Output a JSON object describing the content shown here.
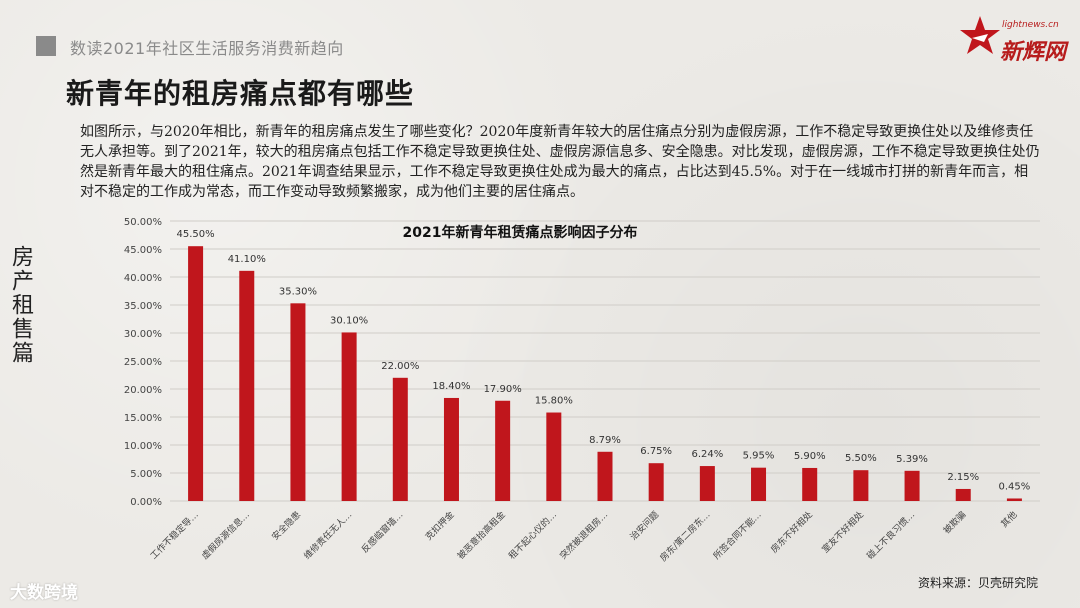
{
  "header": {
    "subtitle": "数读2021年社区生活服务消费新趋向",
    "title": "新青年的租房痛点都有哪些"
  },
  "logo": {
    "url_text": "lightnews.cn",
    "name": "新辉网"
  },
  "description": "如图所示，与2020年相比，新青年的租房痛点发生了哪些变化？2020年度新青年较大的居住痛点分别为虚假房源，工作不稳定导致更换住处以及维修责任无人承担等。到了2021年，较大的租房痛点包括工作不稳定导致更换住处、虚假房源信息多、安全隐患。对比发现，虚假房源，工作不稳定导致更换住处仍然是新青年最大的租住痛点。2021年调查结果显示，工作不稳定导致更换住处成为最大的痛点，占比达到45.5%。对于在一线城市打拼的新青年而言，相对不稳定的工作成为常态，而工作变动导致频繁搬家，成为他们主要的居住痛点。",
  "side_label": "房产租售篇",
  "source": "资料来源：贝壳研究院",
  "watermark": "大数跨境",
  "colors": {
    "bar": "#c0161c",
    "grid": "#d0cdc8"
  },
  "chart_data": {
    "type": "bar",
    "title": "2021年新青年租赁痛点影响因子分布",
    "xlabel": "",
    "ylabel": "",
    "ylim": [
      0,
      50
    ],
    "yticks": [
      "0.00%",
      "5.00%",
      "10.00%",
      "15.00%",
      "20.00%",
      "25.00%",
      "30.00%",
      "35.00%",
      "40.00%",
      "45.00%",
      "50.00%"
    ],
    "grid": true,
    "categories": [
      "工作不稳定导…",
      "虚假房源信息…",
      "安全隐患",
      "维修责任无人…",
      "反感临窗墙…",
      "克扣押金",
      "被恶意抬高租金",
      "租不起心仪的…",
      "突然被退租房…",
      "治安问题",
      "房东/第二房东…",
      "所签合同不能…",
      "房东不好相处",
      "室友不好相处",
      "碰上不良习惯…",
      "被欺骗",
      "其他"
    ],
    "values": [
      45.5,
      41.1,
      35.3,
      30.1,
      22.0,
      18.4,
      17.9,
      15.8,
      8.79,
      6.75,
      6.24,
      5.95,
      5.9,
      5.5,
      5.39,
      2.15,
      0.45
    ],
    "value_labels": [
      "45.50%",
      "41.10%",
      "35.30%",
      "30.10%",
      "22.00%",
      "18.40%",
      "17.90%",
      "15.80%",
      "8.79%",
      "6.75%",
      "6.24%",
      "5.95%",
      "5.90%",
      "5.50%",
      "5.39%",
      "2.15%",
      "0.45%"
    ]
  }
}
